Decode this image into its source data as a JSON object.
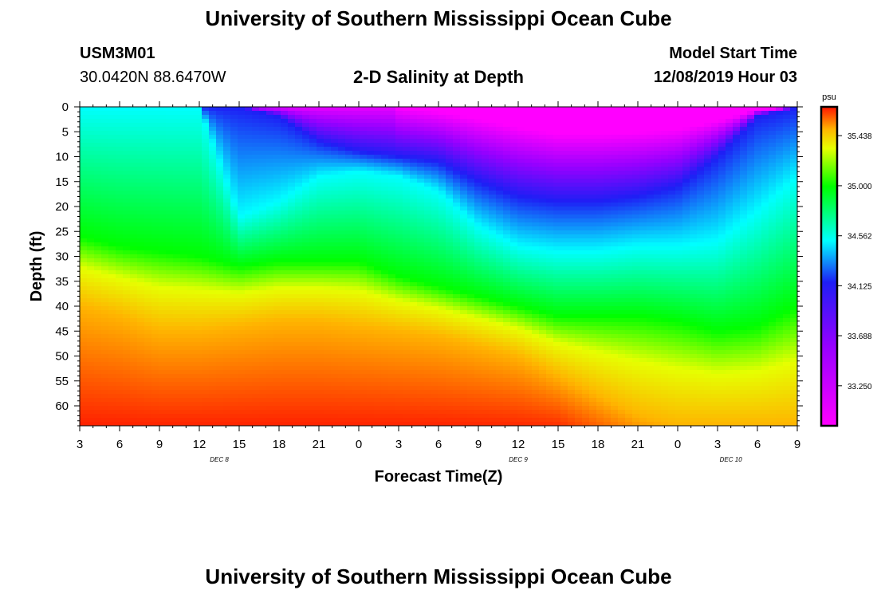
{
  "header": {
    "title": "University of Southern Mississippi Ocean Cube",
    "station_id": "USM3M01",
    "station_location": "30.0420N 88.6470W",
    "plot_title": "2-D Salinity at Depth",
    "model_start_label": "Model Start Time",
    "model_start_value": "12/08/2019 Hour 03",
    "footer_title": "University of Southern Mississippi Ocean Cube"
  },
  "chart_data": {
    "type": "heatmap",
    "title": "2-D Salinity at Depth",
    "xlabel": "Forecast Time(Z)",
    "ylabel": "Depth (ft)",
    "x_hours_since_start": [
      0,
      3,
      6,
      9,
      12,
      15,
      18,
      21,
      24,
      27,
      30,
      33,
      36,
      39,
      42,
      45,
      48,
      51,
      54
    ],
    "x_tick_labels": [
      "3",
      "6",
      "9",
      "12",
      "15",
      "18",
      "21",
      "0",
      "3",
      "6",
      "9",
      "12",
      "15",
      "18",
      "21",
      "0",
      "3",
      "6",
      "9"
    ],
    "x_day_labels": [
      {
        "label": "DEC 8",
        "hour": 10.5
      },
      {
        "label": "DEC 9",
        "hour": 33
      },
      {
        "label": "DEC 10",
        "hour": 49
      }
    ],
    "xlim": [
      0,
      54
    ],
    "y_ticks": [
      0,
      5,
      10,
      15,
      20,
      25,
      30,
      35,
      40,
      45,
      50,
      55,
      60
    ],
    "ylim": [
      0,
      64
    ],
    "colorbar": {
      "label": "psu",
      "ticks": [
        35.438,
        35.0,
        34.562,
        34.125,
        33.688,
        33.25
      ],
      "tick_labels": [
        "35.438",
        "35.000",
        "34.562",
        "34.125",
        "33.688",
        "33.250"
      ],
      "vmin": 32.9,
      "vmax": 35.69
    },
    "isohaline_depths_ft": {
      "s34125": [
        0,
        0,
        0,
        0,
        0,
        2,
        7,
        9,
        10,
        11,
        15,
        18,
        19,
        19,
        18,
        16,
        10,
        2,
        0
      ],
      "s34562": [
        0,
        0,
        0,
        0,
        22,
        19,
        14,
        13,
        14,
        17,
        24,
        28,
        29,
        29,
        28,
        28,
        27,
        21,
        14
      ],
      "s35000": [
        26,
        28,
        29,
        30,
        32,
        31,
        31,
        31,
        34,
        36,
        38,
        40,
        42,
        42,
        42,
        43,
        45,
        44,
        40
      ],
      "s35438": [
        40,
        42,
        45,
        45,
        44,
        43,
        43,
        44,
        45,
        46,
        48,
        50,
        54,
        58,
        62,
        64,
        64,
        64,
        64
      ]
    },
    "colors": {
      "c33250": "#ff00ff",
      "c33688": "#9600ff",
      "c34125": "#1e1ef5",
      "c34562": "#00ffff",
      "c35000": "#00ff00",
      "c35438": "#ffb400",
      "c35690": "#ff1400"
    }
  }
}
